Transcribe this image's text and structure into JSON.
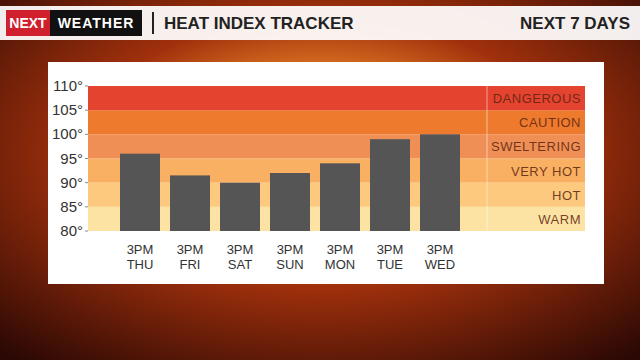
{
  "header": {
    "brand": "NEXT",
    "brand_sub": "WEATHER"
  },
  "chart_data": {
    "type": "bar",
    "title": "HEAT INDEX TRACKER",
    "subtitle": "NEXT 7 DAYS",
    "categories": [
      "3PM THU",
      "3PM FRI",
      "3PM SAT",
      "3PM SUN",
      "3PM MON",
      "3PM TUE",
      "3PM WED"
    ],
    "values": [
      96,
      91.5,
      90,
      92,
      94,
      99,
      100
    ],
    "color": "#555555",
    "ylim": [
      80,
      110
    ],
    "yticks": [
      {
        "value": 80,
        "label": "80°"
      },
      {
        "value": 85,
        "label": "85°"
      },
      {
        "value": 90,
        "label": "90°"
      },
      {
        "value": 95,
        "label": "95°"
      },
      {
        "value": 100,
        "label": "100°"
      },
      {
        "value": 105,
        "label": "105°"
      },
      {
        "value": 110,
        "label": "110°"
      }
    ],
    "grid": false,
    "bands": [
      {
        "label": "WARM",
        "from": 80,
        "to": 85,
        "color": "#fde3a3"
      },
      {
        "label": "HOT",
        "from": 85,
        "to": 90,
        "color": "#fcc97e"
      },
      {
        "label": "VERY HOT",
        "from": 90,
        "to": 95,
        "color": "#f9b062"
      },
      {
        "label": "SWELTERING",
        "from": 95,
        "to": 100,
        "color": "#ef8f55"
      },
      {
        "label": "CAUTION",
        "from": 100,
        "to": 105,
        "color": "#ee7a2e"
      },
      {
        "label": "DANGEROUS",
        "from": 105,
        "to": 110,
        "color": "#e4432f"
      }
    ]
  }
}
